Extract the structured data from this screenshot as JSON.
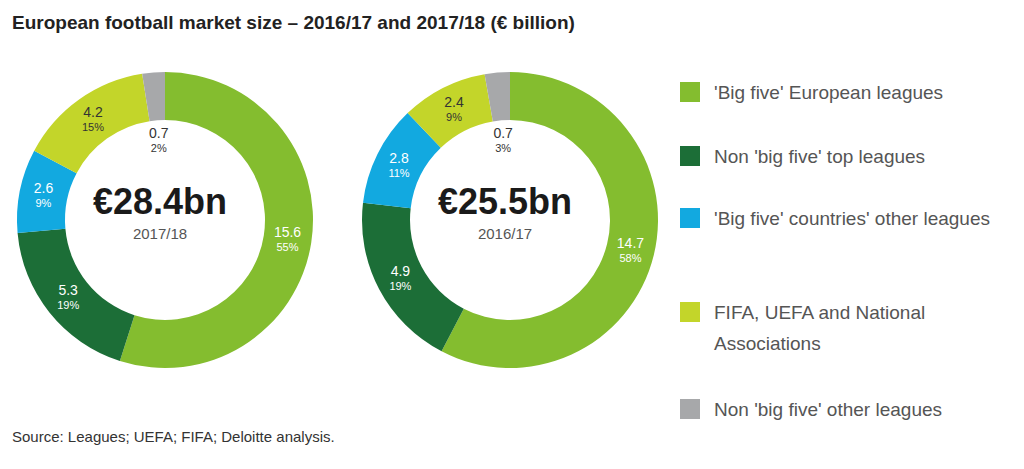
{
  "title": "European football market size – 2016/17 and 2017/18 (€ billion)",
  "source": "Source: Leagues; UEFA; FIFA; Deloitte analysis.",
  "chart_data": [
    {
      "type": "pie",
      "center_label": "€28.4bn",
      "subtitle": "2017/18",
      "categories": [
        "'Big five' European leagues",
        "Non 'big five' top leagues",
        "'Big five' countries' other leagues",
        "FIFA, UEFA and National Associations",
        "Non 'big five' other leagues"
      ],
      "values": [
        15.6,
        5.3,
        2.6,
        4.2,
        0.7
      ],
      "share_labels": [
        "55%",
        "19%",
        "9%",
        "15%",
        "2%"
      ],
      "colors": [
        "#84bd2f",
        "#1c6e37",
        "#12a9e0",
        "#c3d52a",
        "#a7a8aa"
      ],
      "data_labels": true
    },
    {
      "type": "pie",
      "center_label": "€25.5bn",
      "subtitle": "2016/17",
      "categories": [
        "'Big five' European leagues",
        "Non 'big five' top leagues",
        "'Big five' countries' other leagues",
        "FIFA, UEFA and National Associations",
        "Non 'big five' other leagues"
      ],
      "values": [
        14.7,
        4.9,
        2.8,
        2.4,
        0.7
      ],
      "share_labels": [
        "58%",
        "19%",
        "11%",
        "9%",
        "3%"
      ],
      "colors": [
        "#84bd2f",
        "#1c6e37",
        "#12a9e0",
        "#c3d52a",
        "#a7a8aa"
      ],
      "data_labels": true,
      "legend": "right"
    }
  ]
}
